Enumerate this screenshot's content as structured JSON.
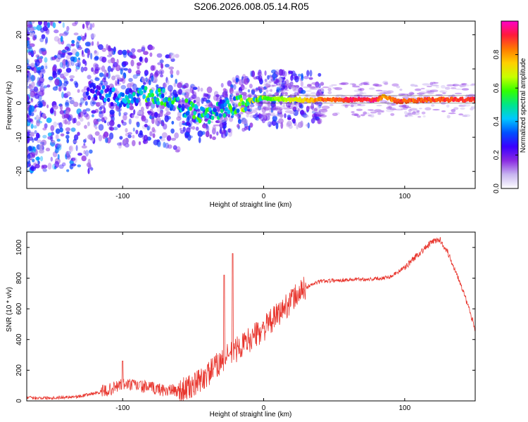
{
  "figure_title": "S206.2026.008.05.14.R05",
  "colors": {
    "snr_line": "#e8342c",
    "trace": "#e02020",
    "colormap": [
      "#ffffff",
      "#c8b6f0",
      "#8a2be2",
      "#3a00ff",
      "#0050ff",
      "#00c8ff",
      "#00e58a",
      "#32ff00",
      "#c8ff00",
      "#ffd000",
      "#ff7a00",
      "#ff1a3a",
      "#ff00c8"
    ]
  },
  "chart_data": [
    {
      "type": "heatmap",
      "title": "",
      "xlabel": "Height of straight line (km)",
      "ylabel": "Frequency (Hz)",
      "xlim": [
        -168,
        150
      ],
      "ylim": [
        -25,
        24
      ],
      "xticks": [
        -100,
        0,
        100
      ],
      "xtick_labels": [
        "-100",
        "0",
        "100"
      ],
      "yticks": [
        20,
        10,
        0,
        -10,
        -20
      ],
      "ytick_labels": [
        "20",
        "10",
        "0",
        "-10",
        "-20"
      ],
      "colorbar": {
        "label": "Normalized spectral amplitude",
        "range": [
          0,
          1
        ],
        "ticks": [
          0.0,
          0.2,
          0.4,
          0.6,
          0.8
        ],
        "tick_labels": [
          "0.0",
          "0.2",
          "0.4",
          "0.6",
          "0.8"
        ]
      },
      "ridge": {
        "description_points": [
          {
            "x": -120,
            "y": 4,
            "amp": 0.3
          },
          {
            "x": -100,
            "y": 1,
            "amp": 0.35
          },
          {
            "x": -80,
            "y": 3,
            "amp": 0.5
          },
          {
            "x": -62,
            "y": 0,
            "amp": 0.45
          },
          {
            "x": -45,
            "y": -4,
            "amp": 0.5
          },
          {
            "x": -30,
            "y": -2,
            "amp": 0.4
          },
          {
            "x": -15,
            "y": 0,
            "amp": 0.55
          },
          {
            "x": 0,
            "y": 1.5,
            "amp": 0.6
          },
          {
            "x": 20,
            "y": 1,
            "amp": 0.7
          },
          {
            "x": 40,
            "y": 1,
            "amp": 0.85
          },
          {
            "x": 60,
            "y": 1,
            "amp": 0.95
          },
          {
            "x": 80,
            "y": 1,
            "amp": 0.95
          },
          {
            "x": 85,
            "y": 2,
            "amp": 0.8
          },
          {
            "x": 95,
            "y": 0.5,
            "amp": 0.9
          },
          {
            "x": 120,
            "y": 1,
            "amp": 0.9
          },
          {
            "x": 150,
            "y": 1,
            "amp": 0.95
          }
        ]
      }
    },
    {
      "type": "line",
      "title": "",
      "xlabel": "Height of straight line (km)",
      "ylabel": "SNR (10 * v/v)",
      "xlim": [
        -168,
        150
      ],
      "ylim": [
        0,
        1100
      ],
      "xticks": [
        -100,
        0,
        100
      ],
      "xtick_labels": [
        "-100",
        "0",
        "100"
      ],
      "yticks": [
        0,
        200,
        400,
        600,
        800,
        1000
      ],
      "ytick_labels": [
        "0",
        "200",
        "400",
        "600",
        "800",
        "1000"
      ],
      "series": [
        {
          "name": "SNR",
          "envelope_x": [
            -168,
            -150,
            -130,
            -110,
            -100,
            -90,
            -80,
            -70,
            -60,
            -50,
            -40,
            -30,
            -20,
            -10,
            0,
            10,
            20,
            30,
            40,
            60,
            80,
            90,
            100,
            110,
            120,
            125,
            130,
            140,
            150
          ],
          "envelope_y": [
            20,
            20,
            30,
            70,
            110,
            100,
            85,
            70,
            65,
            95,
            170,
            260,
            330,
            400,
            470,
            560,
            660,
            740,
            780,
            790,
            795,
            810,
            870,
            960,
            1040,
            1050,
            980,
            760,
            470
          ],
          "spikes": [
            {
              "x": -28,
              "y": 820
            },
            {
              "x": -22,
              "y": 960
            },
            {
              "x": -100,
              "y": 260
            }
          ]
        }
      ]
    }
  ]
}
